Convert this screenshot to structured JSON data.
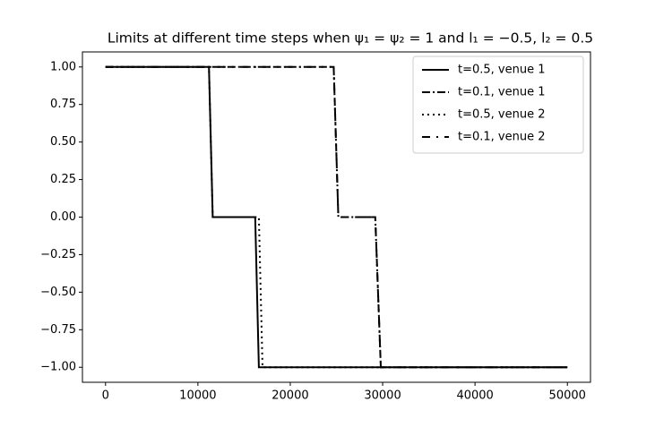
{
  "chart_data": {
    "type": "line",
    "title": "Limits at different time steps when ψ₁ = ψ₂ = 1 and l₁ = −0.5, l₂ = 0.5",
    "series": [
      {
        "name": "t=0.5, venue 1",
        "color": "#000000",
        "dash": "none",
        "x": [
          0,
          11200,
          11600,
          16200,
          16600,
          50000
        ],
        "values": [
          1,
          1,
          0,
          0,
          -1,
          -1
        ]
      },
      {
        "name": "t=0.1, venue 1",
        "color": "#000000",
        "dash": "9,3,2,3",
        "x": [
          0,
          24700,
          25200,
          29200,
          29800,
          50000
        ],
        "values": [
          1,
          1,
          0,
          0,
          -1,
          -1
        ]
      },
      {
        "name": "t=0.5, venue 2",
        "color": "#000000",
        "dash": "2,4",
        "x": [
          0,
          11200,
          11600,
          16600,
          17000,
          50000
        ],
        "values": [
          1,
          1,
          0,
          0,
          -1,
          -1
        ]
      },
      {
        "name": "t=0.1, venue 2",
        "color": "#000000",
        "dash": "9,7,2,7",
        "x": [
          0,
          24700,
          25200,
          29200,
          29800,
          50000
        ],
        "values": [
          1,
          1,
          0,
          0,
          -1,
          -1
        ]
      }
    ],
    "xlim": [
      -2500,
      52500
    ],
    "ylim": [
      -1.1,
      1.1
    ],
    "xticks": [
      0,
      10000,
      20000,
      30000,
      40000,
      50000
    ],
    "yticks": [
      {
        "value": -1,
        "label": "−1.00"
      },
      {
        "value": -0.75,
        "label": "−0.75"
      },
      {
        "value": -0.5,
        "label": "−0.50"
      },
      {
        "value": -0.25,
        "label": "−0.25"
      },
      {
        "value": 0,
        "label": "0.00"
      },
      {
        "value": 0.25,
        "label": "0.25"
      },
      {
        "value": 0.5,
        "label": "0.50"
      },
      {
        "value": 0.75,
        "label": "0.75"
      },
      {
        "value": 1,
        "label": "1.00"
      }
    ],
    "grid": false,
    "legend": "upper right"
  }
}
